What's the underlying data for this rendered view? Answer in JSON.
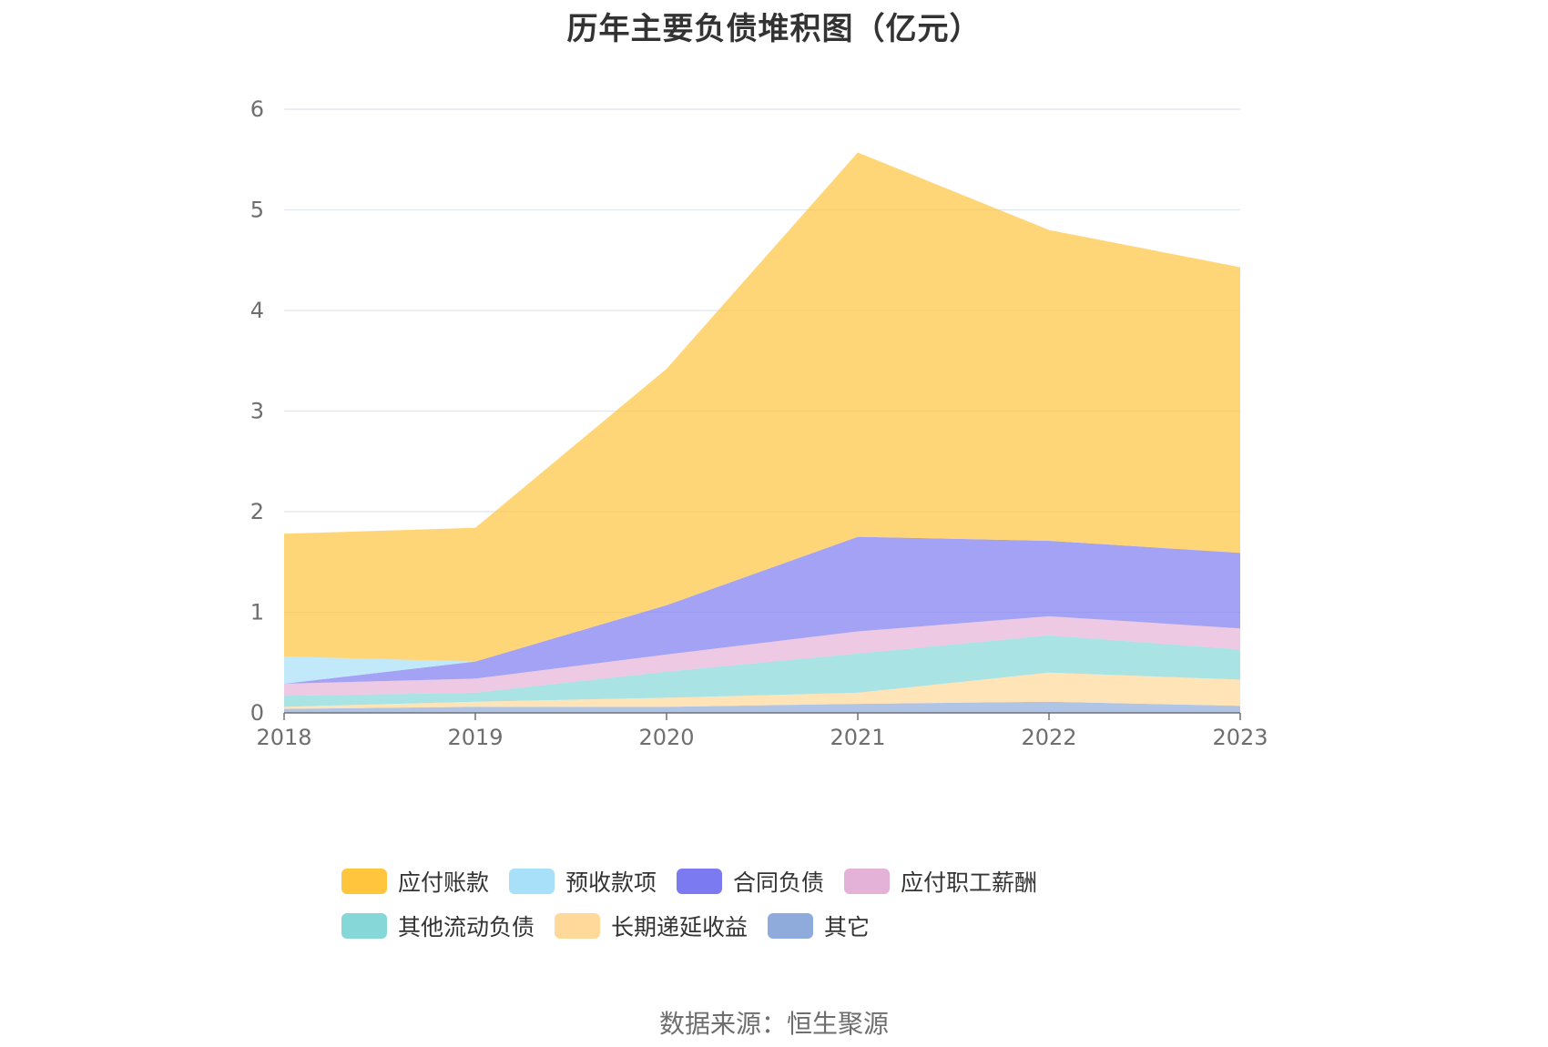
{
  "chart_data": {
    "type": "area",
    "stacked": true,
    "title": "历年主要负债堆积图（亿元）",
    "source": "数据来源：恒生聚源",
    "x": [
      "2018",
      "2019",
      "2020",
      "2021",
      "2022",
      "2023"
    ],
    "ylim": [
      0,
      6
    ],
    "yticks": [
      "0",
      "1",
      "2",
      "3",
      "4",
      "5",
      "6"
    ],
    "grid": true,
    "legend_position": "bottom",
    "series": [
      {
        "name": "其它",
        "color": "#8fabdc",
        "values": [
          0.04,
          0.06,
          0.06,
          0.09,
          0.11,
          0.07
        ]
      },
      {
        "name": "长期递延收益",
        "color": "#ffd99a",
        "values": [
          0.02,
          0.05,
          0.09,
          0.11,
          0.29,
          0.26
        ]
      },
      {
        "name": "其他流动负债",
        "color": "#86d7d8",
        "values": [
          0.11,
          0.09,
          0.26,
          0.39,
          0.37,
          0.3
        ]
      },
      {
        "name": "应付职工薪酬",
        "color": "#e5b2d7",
        "values": [
          0.12,
          0.14,
          0.17,
          0.22,
          0.19,
          0.21
        ]
      },
      {
        "name": "合同负债",
        "color": "#7c7af0",
        "values": [
          0.0,
          0.17,
          0.49,
          0.94,
          0.75,
          0.75
        ]
      },
      {
        "name": "预收款项",
        "color": "#a7e0f8",
        "values": [
          0.27,
          0.0,
          0.0,
          0.0,
          0.0,
          0.0
        ]
      },
      {
        "name": "应付账款",
        "color": "#ffc53d",
        "values": [
          1.22,
          1.33,
          2.35,
          3.82,
          3.09,
          2.84
        ]
      }
    ],
    "legend_order": [
      "应付账款",
      "预收款项",
      "合同负债",
      "应付职工薪酬",
      "其他流动负债",
      "长期递延收益",
      "其它"
    ]
  }
}
